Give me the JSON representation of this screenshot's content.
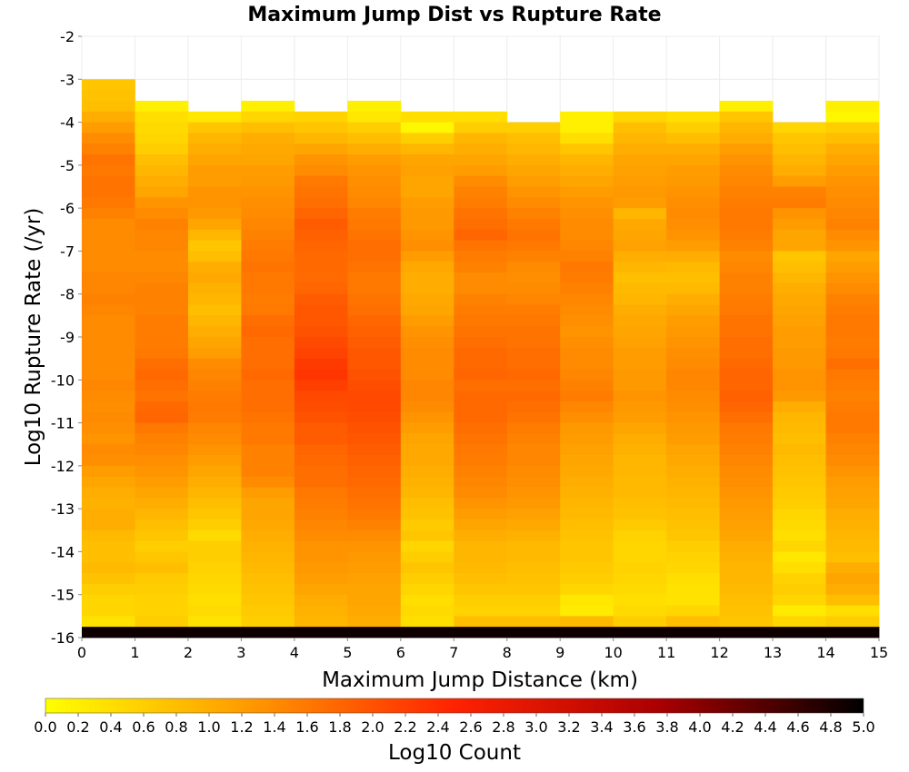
{
  "chart_data": {
    "type": "heatmap",
    "title": "Maximum Jump Dist vs Rupture Rate",
    "xlabel": "Maximum Jump Distance (km)",
    "ylabel": "Log10 Rupture Rate (/yr)",
    "colorbar_label": "Log10 Count",
    "xlim": [
      0,
      15
    ],
    "ylim": [
      -16,
      -2
    ],
    "x_ticks": [
      "0",
      "1",
      "2",
      "3",
      "4",
      "5",
      "6",
      "7",
      "8",
      "9",
      "10",
      "11",
      "12",
      "13",
      "14",
      "15"
    ],
    "y_ticks": [
      "-2",
      "-3",
      "-4",
      "-5",
      "-6",
      "-7",
      "-8",
      "-9",
      "-10",
      "-11",
      "-12",
      "-13",
      "-14",
      "-15",
      "-16"
    ],
    "colorbar_range": [
      0,
      5
    ],
    "colorbar_ticks": [
      "0.0",
      "0.2",
      "0.4",
      "0.6",
      "0.8",
      "1.0",
      "1.2",
      "1.4",
      "1.6",
      "1.8",
      "2.0",
      "2.2",
      "2.4",
      "2.6",
      "2.8",
      "3.0",
      "3.2",
      "3.4",
      "3.6",
      "3.8",
      "4.0",
      "4.2",
      "4.4",
      "4.6",
      "4.8",
      "5.0"
    ],
    "colormap": [
      "#ffff00",
      "#ff9900",
      "#ff2200",
      "#aa0000",
      "#000000"
    ],
    "x_bin_width": 1,
    "y_bin_width": 0.25,
    "y_bins_top_down": [
      -3.125,
      -3.375,
      -3.625,
      -3.875,
      -4.125,
      -4.375,
      -4.625,
      -4.875,
      -5.125,
      -5.375,
      -5.625,
      -5.875,
      -6.125,
      -6.375,
      -6.625,
      -6.875,
      -7.125,
      -7.375,
      -7.625,
      -7.875,
      -8.125,
      -8.375,
      -8.625,
      -8.875,
      -9.125,
      -9.375,
      -9.625,
      -9.875,
      -10.125,
      -10.375,
      -10.625,
      -10.875,
      -11.125,
      -11.375,
      -11.625,
      -11.875,
      -12.125,
      -12.375,
      -12.625,
      -12.875,
      -13.125,
      -13.375,
      -13.625,
      -13.875,
      -14.125,
      -14.375,
      -14.625,
      -14.875,
      -15.125,
      -15.375,
      -15.625,
      -15.875
    ],
    "columns": [
      {
        "x": 0.5,
        "values": [
          0.7,
          0.75,
          0.8,
          1.0,
          1.2,
          1.4,
          1.5,
          1.65,
          1.6,
          1.65,
          1.65,
          1.6,
          1.5,
          1.4,
          1.4,
          1.4,
          1.4,
          1.4,
          1.45,
          1.45,
          1.5,
          1.45,
          1.4,
          1.4,
          1.4,
          1.4,
          1.4,
          1.4,
          1.45,
          1.4,
          1.35,
          1.4,
          1.35,
          1.3,
          1.4,
          1.35,
          1.2,
          1.1,
          1.0,
          0.95,
          1.0,
          1.0,
          0.85,
          0.8,
          0.8,
          0.85,
          0.75,
          0.6,
          0.5,
          0.5,
          0.35,
          4.9
        ]
      },
      {
        "x": 1.5,
        "values": [
          null,
          null,
          0.2,
          0.4,
          0.45,
          0.5,
          0.6,
          0.8,
          0.9,
          1.0,
          1.1,
          1.3,
          1.4,
          1.5,
          1.45,
          1.45,
          1.4,
          1.4,
          1.45,
          1.5,
          1.5,
          1.5,
          1.55,
          1.55,
          1.55,
          1.6,
          1.7,
          1.75,
          1.7,
          1.65,
          1.75,
          1.8,
          1.6,
          1.5,
          1.45,
          1.35,
          1.3,
          1.2,
          1.1,
          1.0,
          0.9,
          0.8,
          0.7,
          0.6,
          0.7,
          0.8,
          0.65,
          0.6,
          0.55,
          0.55,
          0.6,
          4.9
        ]
      },
      {
        "x": 2.5,
        "values": [
          null,
          null,
          null,
          0.3,
          0.7,
          0.9,
          1.0,
          1.1,
          1.2,
          1.2,
          1.3,
          1.3,
          1.25,
          1.1,
          0.9,
          0.7,
          0.8,
          1.0,
          1.05,
          0.95,
          0.9,
          0.8,
          0.9,
          1.0,
          1.1,
          1.2,
          1.4,
          1.45,
          1.5,
          1.55,
          1.6,
          1.55,
          1.45,
          1.4,
          1.3,
          1.2,
          1.1,
          1.0,
          0.9,
          0.8,
          0.7,
          0.6,
          0.45,
          0.6,
          0.6,
          0.55,
          0.5,
          0.45,
          0.4,
          0.45,
          0.35,
          4.9
        ]
      },
      {
        "x": 3.5,
        "values": [
          null,
          null,
          0.2,
          0.5,
          0.8,
          1.0,
          1.05,
          1.1,
          1.2,
          1.25,
          1.3,
          1.35,
          1.4,
          1.45,
          1.5,
          1.55,
          1.6,
          1.65,
          1.6,
          1.6,
          1.55,
          1.6,
          1.7,
          1.75,
          1.7,
          1.7,
          1.7,
          1.75,
          1.7,
          1.7,
          1.7,
          1.65,
          1.6,
          1.6,
          1.5,
          1.5,
          1.5,
          1.4,
          1.2,
          1.1,
          1.1,
          1.05,
          1.0,
          0.95,
          0.9,
          0.85,
          0.8,
          0.75,
          0.7,
          0.65,
          0.6,
          4.9
        ]
      },
      {
        "x": 4.5,
        "values": [
          null,
          null,
          null,
          0.55,
          0.7,
          0.9,
          1.1,
          1.3,
          1.4,
          1.6,
          1.65,
          1.7,
          1.8,
          1.9,
          1.85,
          1.8,
          1.75,
          1.75,
          1.75,
          1.8,
          1.9,
          1.95,
          1.95,
          2.0,
          2.1,
          2.15,
          2.25,
          2.3,
          2.2,
          2.1,
          2.05,
          2.0,
          1.9,
          1.9,
          1.8,
          1.75,
          1.7,
          1.7,
          1.6,
          1.55,
          1.5,
          1.45,
          1.4,
          1.3,
          1.3,
          1.25,
          1.2,
          1.1,
          1.0,
          0.95,
          0.9,
          4.9
        ]
      },
      {
        "x": 5.5,
        "values": [
          null,
          null,
          0.2,
          0.3,
          0.6,
          0.8,
          1.0,
          1.2,
          1.3,
          1.35,
          1.4,
          1.45,
          1.55,
          1.6,
          1.65,
          1.7,
          1.7,
          1.65,
          1.6,
          1.6,
          1.65,
          1.7,
          1.8,
          1.85,
          1.9,
          1.95,
          1.95,
          2.0,
          2.05,
          2.1,
          2.1,
          2.05,
          2.0,
          1.95,
          1.9,
          1.85,
          1.8,
          1.75,
          1.7,
          1.65,
          1.6,
          1.5,
          1.4,
          1.3,
          1.25,
          1.2,
          1.15,
          1.1,
          1.1,
          1.05,
          1.0,
          4.9
        ]
      },
      {
        "x": 6.5,
        "values": [
          null,
          null,
          null,
          0.4,
          0.1,
          0.6,
          0.9,
          1.1,
          1.15,
          1.1,
          1.1,
          1.2,
          1.25,
          1.25,
          1.3,
          1.35,
          1.2,
          1.05,
          1.0,
          1.0,
          1.05,
          1.1,
          1.2,
          1.3,
          1.35,
          1.4,
          1.4,
          1.4,
          1.45,
          1.45,
          1.4,
          1.3,
          1.2,
          1.1,
          1.05,
          1.05,
          1.0,
          0.95,
          0.9,
          0.8,
          0.75,
          0.65,
          0.7,
          0.5,
          0.6,
          0.7,
          0.6,
          0.5,
          0.4,
          0.45,
          0.4,
          4.9
        ]
      },
      {
        "x": 7.5,
        "values": [
          null,
          null,
          null,
          0.4,
          0.6,
          0.9,
          1.0,
          1.1,
          1.2,
          1.4,
          1.5,
          1.55,
          1.65,
          1.7,
          1.8,
          1.65,
          1.55,
          1.5,
          1.4,
          1.4,
          1.5,
          1.55,
          1.6,
          1.65,
          1.7,
          1.75,
          1.75,
          1.8,
          1.7,
          1.75,
          1.75,
          1.75,
          1.7,
          1.65,
          1.6,
          1.55,
          1.5,
          1.45,
          1.4,
          1.3,
          1.2,
          1.1,
          1.0,
          0.9,
          0.9,
          0.85,
          0.8,
          0.7,
          0.6,
          0.55,
          0.8,
          4.9
        ]
      },
      {
        "x": 8.5,
        "values": [
          null,
          null,
          null,
          null,
          0.6,
          0.8,
          0.9,
          1.0,
          1.1,
          1.2,
          1.3,
          1.4,
          1.5,
          1.6,
          1.65,
          1.6,
          1.5,
          1.4,
          1.35,
          1.4,
          1.45,
          1.55,
          1.6,
          1.65,
          1.65,
          1.7,
          1.7,
          1.75,
          1.7,
          1.75,
          1.7,
          1.65,
          1.55,
          1.5,
          1.45,
          1.45,
          1.4,
          1.35,
          1.3,
          1.25,
          1.15,
          1.05,
          0.95,
          0.85,
          0.85,
          0.8,
          0.75,
          0.7,
          0.6,
          0.55,
          0.8,
          4.9
        ]
      },
      {
        "x": 9.5,
        "values": [
          null,
          null,
          null,
          0.2,
          0.2,
          0.4,
          0.7,
          0.9,
          1.0,
          1.1,
          1.2,
          1.3,
          1.35,
          1.4,
          1.4,
          1.45,
          1.5,
          1.6,
          1.55,
          1.5,
          1.45,
          1.4,
          1.35,
          1.3,
          1.35,
          1.4,
          1.4,
          1.45,
          1.5,
          1.55,
          1.45,
          1.35,
          1.25,
          1.2,
          1.15,
          1.1,
          1.05,
          1.0,
          0.95,
          0.9,
          0.85,
          0.8,
          0.75,
          0.7,
          0.7,
          0.65,
          0.6,
          0.5,
          0.3,
          0.25,
          0.85,
          4.9
        ]
      },
      {
        "x": 10.5,
        "values": [
          null,
          null,
          null,
          0.5,
          0.8,
          0.9,
          1.0,
          1.1,
          1.15,
          1.2,
          1.25,
          1.2,
          0.9,
          1.05,
          1.1,
          1.15,
          1.0,
          0.9,
          0.8,
          0.85,
          0.9,
          1.0,
          1.05,
          1.1,
          1.15,
          1.2,
          1.2,
          1.25,
          1.25,
          1.3,
          1.25,
          1.2,
          1.1,
          1.0,
          0.95,
          0.9,
          0.9,
          0.85,
          0.85,
          0.8,
          0.75,
          0.65,
          0.55,
          0.5,
          0.5,
          0.55,
          0.5,
          0.45,
          0.4,
          0.45,
          0.6,
          4.9
        ]
      },
      {
        "x": 11.5,
        "values": [
          null,
          null,
          null,
          0.4,
          0.6,
          0.8,
          1.0,
          1.1,
          1.2,
          1.25,
          1.3,
          1.35,
          1.4,
          1.35,
          1.3,
          1.2,
          1.0,
          0.85,
          0.8,
          0.85,
          1.0,
          1.1,
          1.2,
          1.25,
          1.3,
          1.35,
          1.4,
          1.45,
          1.45,
          1.4,
          1.35,
          1.3,
          1.25,
          1.2,
          1.1,
          1.05,
          1.0,
          0.95,
          0.9,
          0.85,
          0.8,
          0.75,
          0.7,
          0.6,
          0.55,
          0.5,
          0.4,
          0.35,
          0.35,
          0.5,
          0.8,
          4.9
        ]
      },
      {
        "x": 12.5,
        "values": [
          null,
          null,
          0.2,
          0.7,
          0.9,
          1.0,
          1.2,
          1.3,
          1.4,
          1.45,
          1.5,
          1.55,
          1.6,
          1.6,
          1.55,
          1.5,
          1.4,
          1.45,
          1.5,
          1.5,
          1.55,
          1.6,
          1.65,
          1.65,
          1.7,
          1.7,
          1.75,
          1.8,
          1.8,
          1.85,
          1.8,
          1.7,
          1.6,
          1.55,
          1.5,
          1.45,
          1.4,
          1.35,
          1.3,
          1.25,
          1.2,
          1.15,
          1.1,
          1.0,
          0.95,
          0.9,
          0.9,
          0.85,
          0.8,
          0.75,
          0.7,
          4.9
        ]
      },
      {
        "x": 13.5,
        "values": [
          null,
          null,
          null,
          null,
          0.5,
          0.7,
          0.8,
          0.9,
          1.0,
          1.2,
          1.5,
          1.55,
          1.3,
          1.2,
          1.1,
          1.1,
          0.7,
          0.8,
          0.9,
          1.0,
          1.05,
          1.1,
          1.15,
          1.2,
          1.2,
          1.25,
          1.25,
          1.3,
          1.3,
          1.25,
          1.0,
          0.9,
          0.85,
          0.8,
          0.85,
          0.8,
          0.75,
          0.7,
          0.65,
          0.6,
          0.5,
          0.45,
          0.4,
          0.5,
          0.3,
          0.4,
          0.55,
          0.6,
          0.5,
          0.25,
          0.5,
          4.9
        ]
      },
      {
        "x": 14.5,
        "values": [
          null,
          null,
          0.2,
          0.1,
          0.6,
          0.8,
          1.0,
          1.1,
          1.2,
          1.3,
          1.35,
          1.4,
          1.45,
          1.5,
          1.4,
          1.3,
          1.1,
          1.2,
          1.3,
          1.4,
          1.5,
          1.55,
          1.6,
          1.6,
          1.55,
          1.6,
          1.7,
          1.6,
          1.55,
          1.5,
          1.55,
          1.6,
          1.6,
          1.5,
          1.45,
          1.4,
          1.3,
          1.2,
          1.15,
          1.1,
          1.0,
          0.95,
          0.9,
          0.85,
          0.8,
          1.0,
          1.1,
          1.0,
          0.8,
          0.4,
          0.6,
          4.9
        ]
      }
    ]
  }
}
